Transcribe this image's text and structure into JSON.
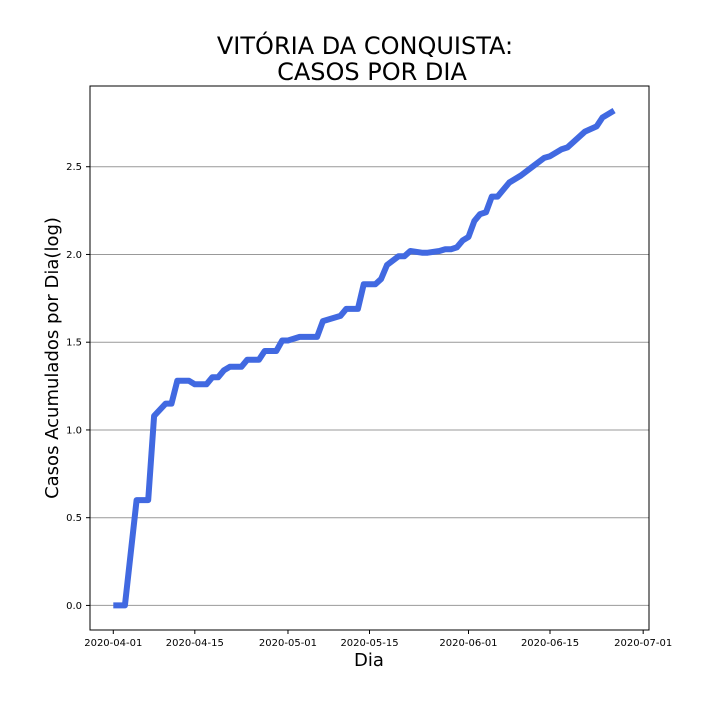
{
  "chart_data": {
    "type": "line",
    "title_lines": [
      "VITÓRIA DA CONQUISTA:",
      "CASOS POR DIA"
    ],
    "xlabel": "Dia",
    "ylabel": "Casos Acumulados por Dia(log)",
    "x_tick_labels": [
      "2020-04-01",
      "2020-04-15",
      "2020-05-01",
      "2020-05-15",
      "2020-06-01",
      "2020-06-15",
      "2020-07-01"
    ],
    "y_tick_labels": [
      "0.0",
      "0.5",
      "1.0",
      "1.5",
      "2.0",
      "2.5"
    ],
    "y_ticks": [
      0,
      0.5,
      1.0,
      1.5,
      2.0,
      2.5
    ],
    "xlim": [
      "2020-03-28",
      "2020-07-02"
    ],
    "ylim": [
      -0.14,
      2.96
    ],
    "grid": "horizontal",
    "line_color": "#4169E1",
    "series": [
      {
        "x": [
          "2020-04-01",
          "2020-04-03",
          "2020-04-05",
          "2020-04-07",
          "2020-04-08",
          "2020-04-10",
          "2020-04-11",
          "2020-04-12",
          "2020-04-14",
          "2020-04-15",
          "2020-04-17",
          "2020-04-18",
          "2020-04-19",
          "2020-04-20",
          "2020-04-21",
          "2020-04-23",
          "2020-04-24",
          "2020-04-26",
          "2020-04-27",
          "2020-04-29",
          "2020-04-30",
          "2020-05-01",
          "2020-05-03",
          "2020-05-06",
          "2020-05-07",
          "2020-05-10",
          "2020-05-11",
          "2020-05-13",
          "2020-05-14",
          "2020-05-16",
          "2020-05-17",
          "2020-05-18",
          "2020-05-20",
          "2020-05-21",
          "2020-05-22",
          "2020-05-24",
          "2020-05-25",
          "2020-05-27",
          "2020-05-28",
          "2020-05-29",
          "2020-05-30",
          "2020-05-31",
          "2020-06-01",
          "2020-06-02",
          "2020-06-03",
          "2020-06-04",
          "2020-06-05",
          "2020-06-06",
          "2020-06-08",
          "2020-06-10",
          "2020-06-12",
          "2020-06-14",
          "2020-06-15",
          "2020-06-17",
          "2020-06-18",
          "2020-06-20",
          "2020-06-21",
          "2020-06-23",
          "2020-06-24",
          "2020-06-26"
        ],
        "y": [
          0.0,
          0.0,
          0.6,
          0.6,
          1.08,
          1.15,
          1.15,
          1.28,
          1.28,
          1.26,
          1.26,
          1.3,
          1.3,
          1.34,
          1.36,
          1.36,
          1.4,
          1.4,
          1.45,
          1.45,
          1.51,
          1.51,
          1.53,
          1.53,
          1.62,
          1.65,
          1.69,
          1.69,
          1.83,
          1.83,
          1.86,
          1.94,
          1.99,
          1.99,
          2.02,
          2.01,
          2.01,
          2.02,
          2.03,
          2.03,
          2.04,
          2.08,
          2.1,
          2.19,
          2.23,
          2.24,
          2.33,
          2.33,
          2.41,
          2.45,
          2.5,
          2.55,
          2.56,
          2.6,
          2.61,
          2.67,
          2.7,
          2.73,
          2.78,
          2.82
        ]
      }
    ]
  }
}
